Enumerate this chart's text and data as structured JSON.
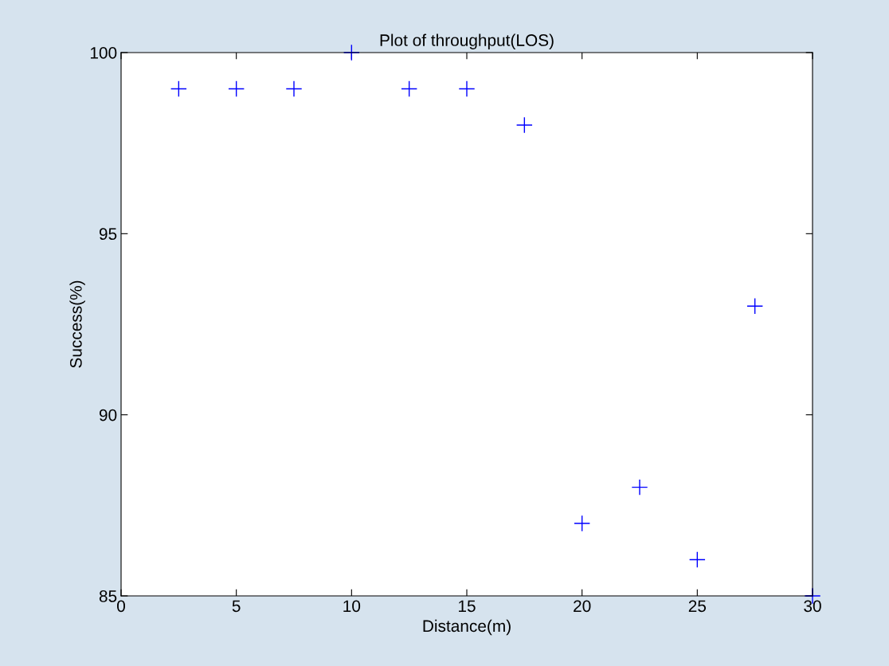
{
  "chart_data": {
    "type": "scatter",
    "title": "Plot of throughput(LOS)",
    "xlabel": "Distance(m)",
    "ylabel": "Success(%)",
    "x": [
      2.5,
      5,
      7.5,
      10,
      12.5,
      15,
      17.5,
      20,
      22.5,
      25,
      27.5,
      30
    ],
    "series": [
      {
        "color": "#0000ff",
        "values": [
          99,
          99,
          99,
          100,
          99,
          99,
          98,
          87,
          88,
          86,
          93,
          85
        ]
      }
    ],
    "xlim": [
      0,
      30
    ],
    "ylim": [
      85,
      100
    ],
    "xticks": [
      0,
      5,
      10,
      15,
      20,
      25,
      30
    ],
    "yticks": [
      85,
      90,
      95,
      100
    ],
    "marker": "cross",
    "grid": false,
    "legend": false
  }
}
